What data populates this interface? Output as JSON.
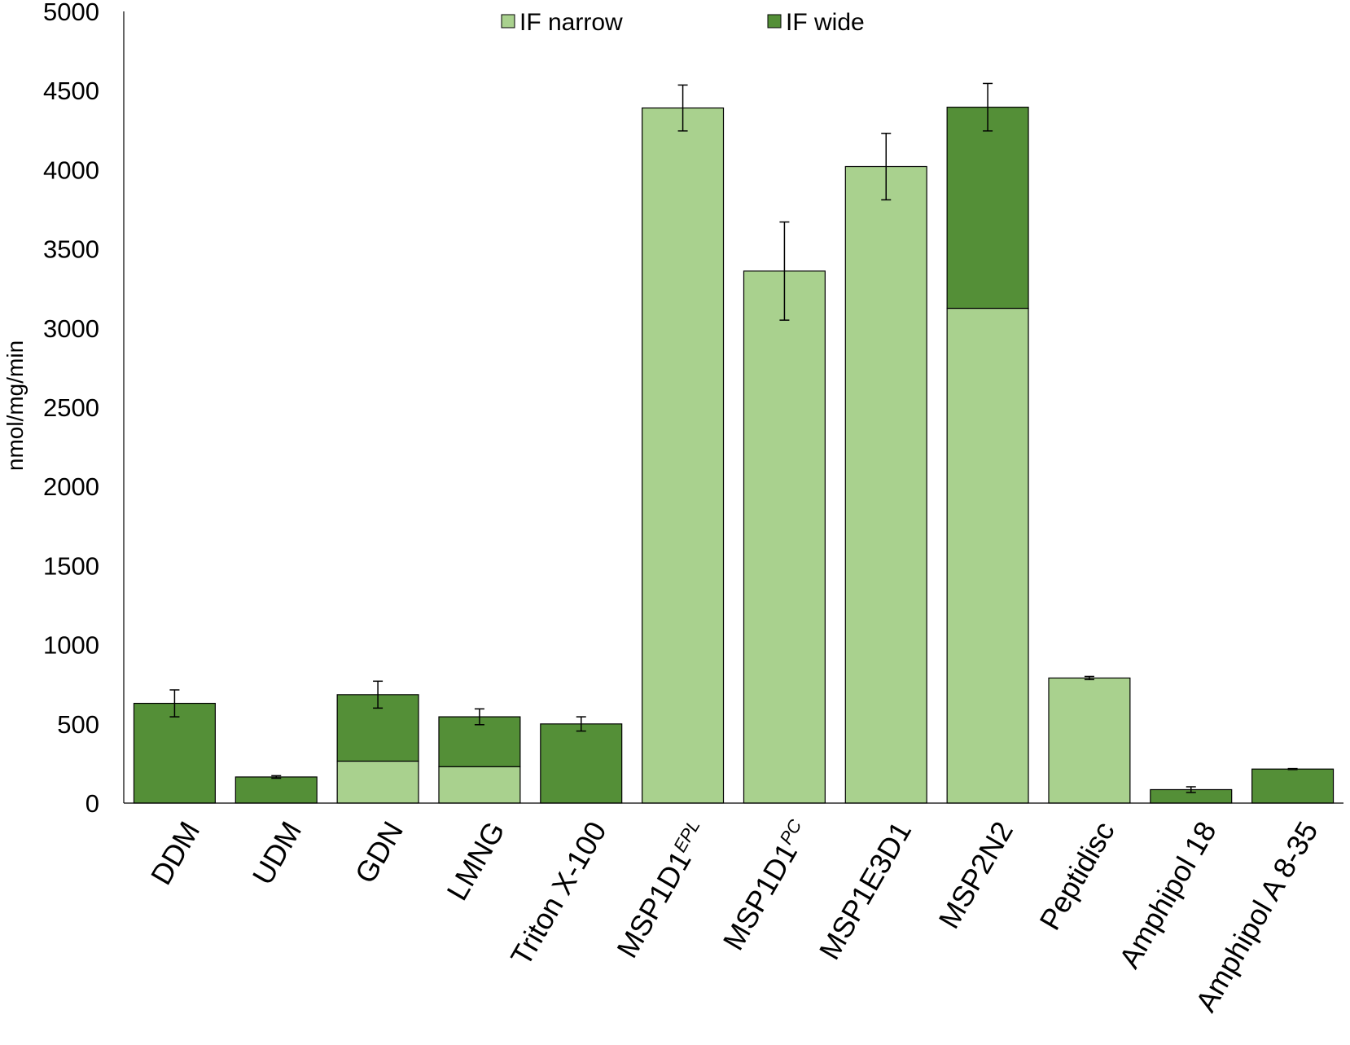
{
  "chart_data": {
    "type": "bar",
    "stacked": true,
    "ylabel": "nmol/mg/min",
    "ylim": [
      0,
      5000
    ],
    "ystep": 500,
    "grid": false,
    "legend_position": "top",
    "categories": [
      {
        "main": "DDM",
        "sup": ""
      },
      {
        "main": "UDM",
        "sup": ""
      },
      {
        "main": "GDN",
        "sup": ""
      },
      {
        "main": "LMNG",
        "sup": ""
      },
      {
        "main": "Triton X-100",
        "sup": ""
      },
      {
        "main": "MSP1D1",
        "sup": "EPL"
      },
      {
        "main": "MSP1D1",
        "sup": "PC"
      },
      {
        "main": "MSP1E3D1",
        "sup": ""
      },
      {
        "main": "MSP2N2",
        "sup": ""
      },
      {
        "main": "Peptidisc",
        "sup": ""
      },
      {
        "main": "Amphipol 18",
        "sup": ""
      },
      {
        "main": "Amphipol A 8-35",
        "sup": ""
      }
    ],
    "series": [
      {
        "name": "IF narrow",
        "color": "#a9d18e",
        "values": [
          0,
          0,
          265,
          230,
          0,
          4390,
          3360,
          4020,
          3125,
          790,
          0,
          0
        ]
      },
      {
        "name": "IF wide",
        "color": "#548f37",
        "values": [
          630,
          165,
          420,
          315,
          500,
          0,
          0,
          0,
          1270,
          0,
          85,
          215
        ]
      }
    ],
    "error_bars": [
      {
        "total": 630,
        "err": 85
      },
      {
        "total": 165,
        "err": 8
      },
      {
        "total": 685,
        "err": 85
      },
      {
        "total": 545,
        "err": 50
      },
      {
        "total": 500,
        "err": 45
      },
      {
        "total": 4390,
        "err": 145
      },
      {
        "total": 3360,
        "err": 310
      },
      {
        "total": 4020,
        "err": 210
      },
      {
        "total": 4395,
        "err": 150
      },
      {
        "total": 790,
        "err": 10
      },
      {
        "total": 85,
        "err": 18
      },
      {
        "total": 215,
        "err": 3
      }
    ]
  }
}
